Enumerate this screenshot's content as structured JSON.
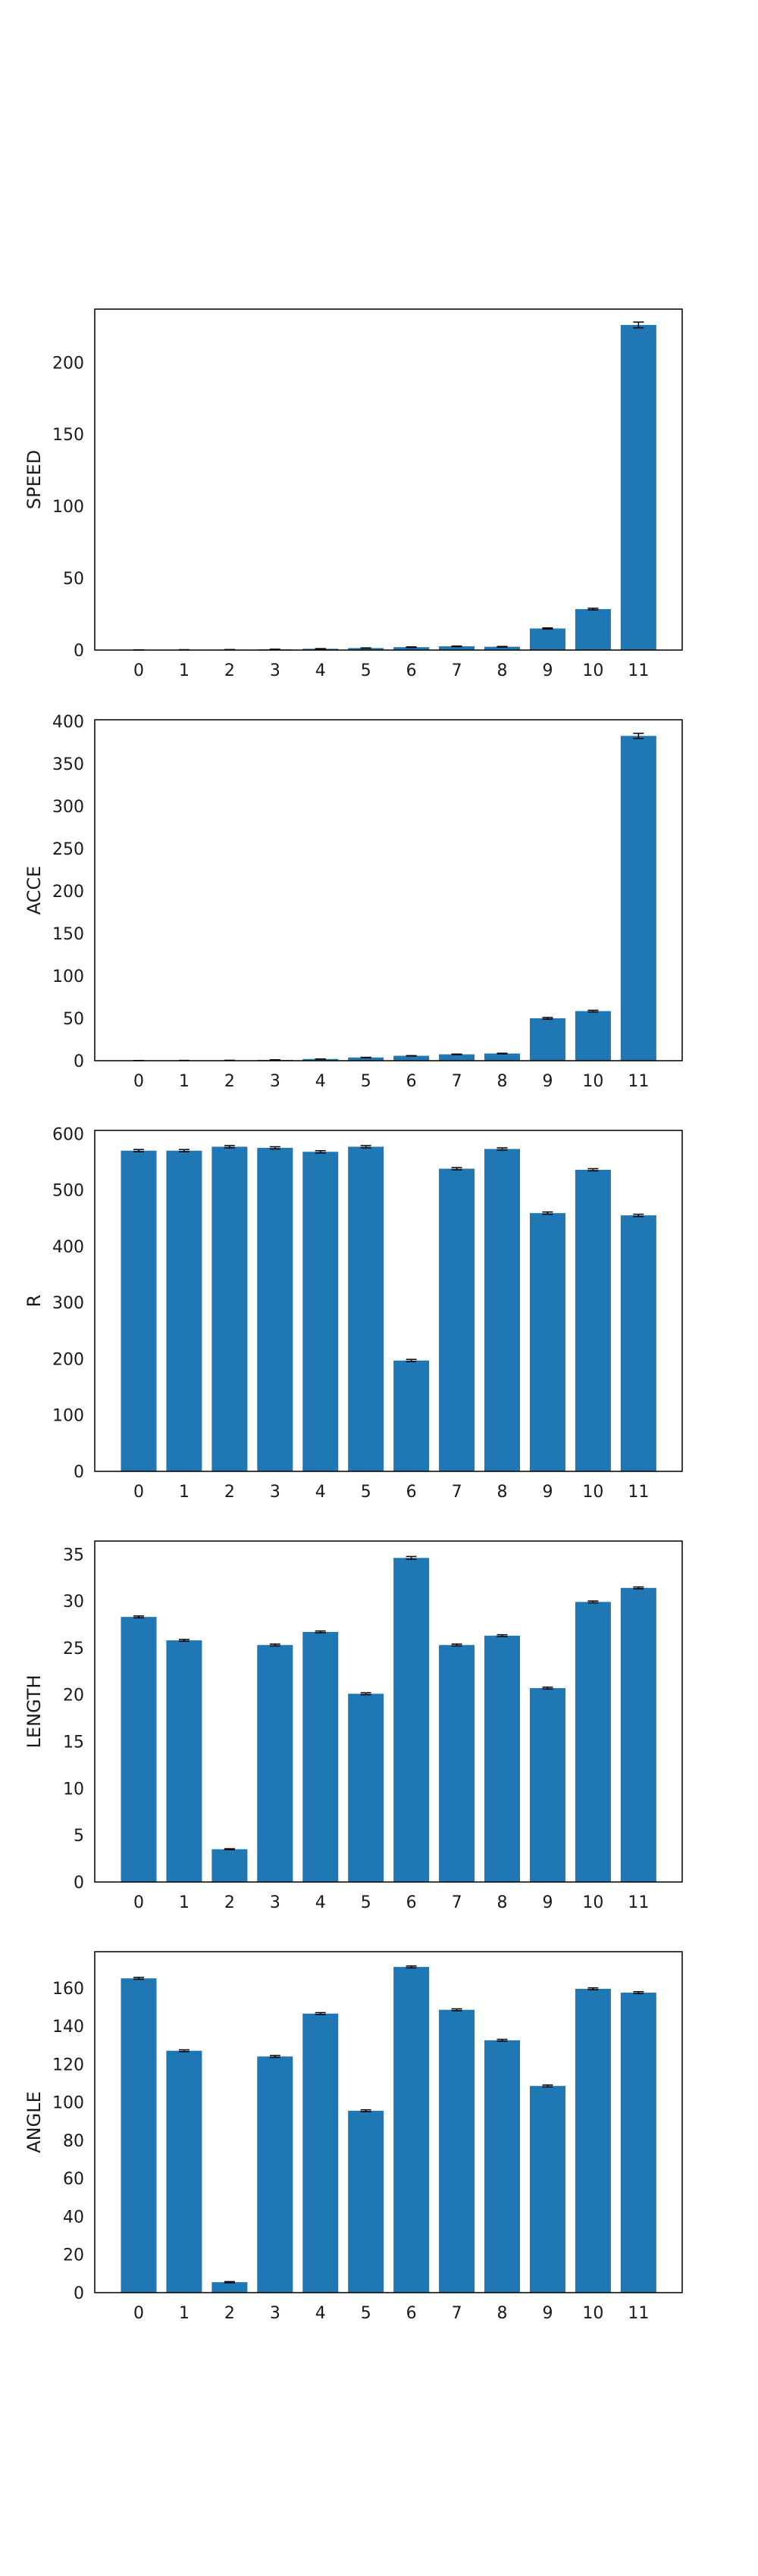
{
  "chart_data": [
    {
      "type": "bar",
      "ylabel": "SPEED",
      "categories": [
        "0",
        "1",
        "2",
        "3",
        "4",
        "5",
        "6",
        "7",
        "8",
        "9",
        "10",
        "11"
      ],
      "values": [
        0.1,
        0.2,
        0.3,
        0.5,
        0.9,
        1.4,
        2.0,
        2.6,
        2.3,
        15.0,
        28.5,
        226.0
      ],
      "errors": [
        0.05,
        0.05,
        0.05,
        0.1,
        0.1,
        0.1,
        0.2,
        0.2,
        0.2,
        0.4,
        0.6,
        2.0
      ],
      "yticks": [
        0,
        50,
        100,
        150,
        200
      ],
      "ylim": [
        0,
        237
      ],
      "color": "#1f77b4"
    },
    {
      "type": "bar",
      "ylabel": "ACCE",
      "categories": [
        "0",
        "1",
        "2",
        "3",
        "4",
        "5",
        "6",
        "7",
        "8",
        "9",
        "10",
        "11"
      ],
      "values": [
        0.2,
        0.3,
        0.4,
        1.0,
        2.0,
        3.8,
        5.8,
        7.5,
        8.5,
        50.0,
        58.5,
        383.0
      ],
      "errors": [
        0.05,
        0.05,
        0.05,
        0.1,
        0.1,
        0.2,
        0.2,
        0.3,
        0.3,
        1.0,
        1.0,
        3.0
      ],
      "yticks": [
        0,
        50,
        100,
        150,
        200,
        250,
        300,
        350,
        400
      ],
      "ylim": [
        0,
        402
      ],
      "color": "#1f77b4"
    },
    {
      "type": "bar",
      "ylabel": "R",
      "categories": [
        "0",
        "1",
        "2",
        "3",
        "4",
        "5",
        "6",
        "7",
        "8",
        "9",
        "10",
        "11"
      ],
      "values": [
        570,
        570,
        577,
        575,
        568,
        577,
        197,
        538,
        573,
        459,
        536,
        455
      ],
      "errors": [
        2,
        2,
        2,
        2,
        2,
        2,
        2,
        2,
        2,
        2,
        2,
        2
      ],
      "yticks": [
        0,
        100,
        200,
        300,
        400,
        500,
        600
      ],
      "ylim": [
        0,
        606
      ],
      "color": "#1f77b4"
    },
    {
      "type": "bar",
      "ylabel": "LENGTH",
      "categories": [
        "0",
        "1",
        "2",
        "3",
        "4",
        "5",
        "6",
        "7",
        "8",
        "9",
        "10",
        "11"
      ],
      "values": [
        28.3,
        25.8,
        3.5,
        25.3,
        26.7,
        20.1,
        34.6,
        25.3,
        26.3,
        20.7,
        29.9,
        31.4
      ],
      "errors": [
        0.1,
        0.1,
        0.05,
        0.1,
        0.1,
        0.1,
        0.15,
        0.1,
        0.1,
        0.1,
        0.1,
        0.1
      ],
      "yticks": [
        0,
        5,
        10,
        15,
        20,
        25,
        30,
        35
      ],
      "ylim": [
        0,
        36.4
      ],
      "color": "#1f77b4"
    },
    {
      "type": "bar",
      "ylabel": "ANGLE",
      "categories": [
        "0",
        "1",
        "2",
        "3",
        "4",
        "5",
        "6",
        "7",
        "8",
        "9",
        "10",
        "11"
      ],
      "values": [
        165,
        127,
        5.5,
        124,
        146.5,
        95.5,
        171,
        148.5,
        132.5,
        108.5,
        159.5,
        157.5
      ],
      "errors": [
        0.5,
        0.5,
        0.3,
        0.5,
        0.5,
        0.5,
        0.5,
        0.5,
        0.5,
        0.5,
        0.5,
        0.5
      ],
      "yticks": [
        0,
        20,
        40,
        60,
        80,
        100,
        120,
        140,
        160
      ],
      "ylim": [
        0,
        179
      ],
      "color": "#1f77b4"
    }
  ]
}
